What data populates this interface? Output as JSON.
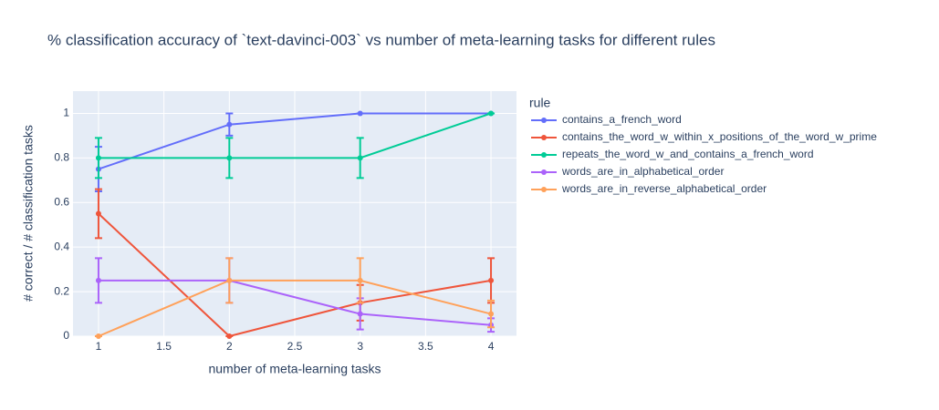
{
  "chart_data": {
    "type": "line",
    "title": "% classification accuracy of `text-davinci-003` vs number of meta-learning tasks for different rules",
    "x_label": "number of meta-learning tasks",
    "y_label": "# correct / # classification tasks",
    "legend_title": "rule",
    "legend": "right",
    "grid": true,
    "x": [
      1,
      2,
      3,
      4
    ],
    "xlim": [
      0.805,
      4.195
    ],
    "xticks": [
      1,
      1.5,
      2,
      2.5,
      3,
      3.5,
      4
    ],
    "ylim": [
      0,
      1.1
    ],
    "yticks": [
      0,
      0.2,
      0.4,
      0.6,
      0.8,
      1
    ],
    "series": [
      {
        "name": "contains_a_french_word",
        "color": "#636efa",
        "values": [
          0.75,
          0.95,
          1,
          1
        ],
        "errors": [
          0.1,
          0.05,
          0,
          0
        ]
      },
      {
        "name": "contains_the_word_w_within_x_positions_of_the_word_w_prime",
        "color": "#ef553b",
        "values": [
          0.55,
          0,
          0.15,
          0.25
        ],
        "errors": [
          0.11,
          0,
          0.08,
          0.1
        ]
      },
      {
        "name": "repeats_the_word_w_and_contains_a_french_word",
        "color": "#00cc96",
        "values": [
          0.8,
          0.8,
          0.8,
          1
        ],
        "errors": [
          0.09,
          0.09,
          0.09,
          0
        ]
      },
      {
        "name": "words_are_in_alphabetical_order",
        "color": "#ab63fa",
        "values": [
          0.25,
          0.25,
          0.1,
          0.05
        ],
        "errors": [
          0.1,
          0.1,
          0.07,
          0.03
        ]
      },
      {
        "name": "words_are_in_reverse_alphabetical_order",
        "color": "#ffa15a",
        "values": [
          0,
          0.25,
          0.25,
          0.1
        ],
        "errors": [
          0,
          0.1,
          0.1,
          0.06
        ]
      }
    ]
  }
}
